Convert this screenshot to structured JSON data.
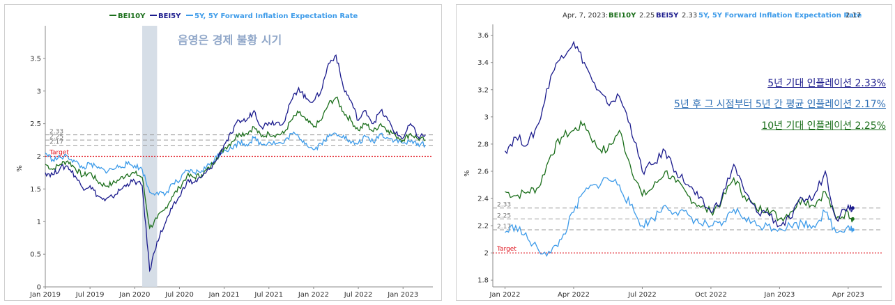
{
  "colors": {
    "bei10y": "#1a6e1a",
    "bei5y": "#1a1a8c",
    "forward": "#3d9be9",
    "target": "#e0141e",
    "ref": "#9a9a9a",
    "shade": "#cfd8e3"
  },
  "chart_data": [
    {
      "type": "line",
      "title": "",
      "legend": {
        "position": "top-center",
        "items": [
          "BEI10Y",
          "BEI5Y",
          "5Y, 5Y Forward Inflation Expectation Rate"
        ]
      },
      "ylabel": "%",
      "xlabel": "",
      "ylim": [
        0,
        4
      ],
      "yticks": [
        "0",
        "0.5",
        "1",
        "1.5",
        "2",
        "2.5",
        "3",
        "3.5"
      ],
      "xticks": [
        "Jan 2019",
        "Jul 2019",
        "Jan 2020",
        "Jul 2020",
        "Jan 2021",
        "Jul 2021",
        "Jan 2022",
        "Jul 2022",
        "Jan 2023"
      ],
      "shaded_period": {
        "start": "2020-02",
        "end": "2020-04",
        "label": "음영은 경제 불황 시기"
      },
      "reference_lines": [
        {
          "value": 2.33,
          "label": "2.33"
        },
        {
          "value": 2.25,
          "label": "2.25"
        },
        {
          "value": 2.17,
          "label": "2.17"
        }
      ],
      "target": {
        "value": 2.0,
        "label": "Target"
      },
      "x": [
        "2019-01",
        "2019-02",
        "2019-03",
        "2019-04",
        "2019-05",
        "2019-06",
        "2019-07",
        "2019-08",
        "2019-09",
        "2019-10",
        "2019-11",
        "2019-12",
        "2020-01",
        "2020-02",
        "2020-03",
        "2020-04",
        "2020-05",
        "2020-06",
        "2020-07",
        "2020-08",
        "2020-09",
        "2020-10",
        "2020-11",
        "2020-12",
        "2021-01",
        "2021-02",
        "2021-03",
        "2021-04",
        "2021-05",
        "2021-06",
        "2021-07",
        "2021-08",
        "2021-09",
        "2021-10",
        "2021-11",
        "2021-12",
        "2022-01",
        "2022-02",
        "2022-03",
        "2022-04",
        "2022-05",
        "2022-06",
        "2022-07",
        "2022-08",
        "2022-09",
        "2022-10",
        "2022-11",
        "2022-12",
        "2023-01",
        "2023-02",
        "2023-03",
        "2023-04"
      ],
      "series": [
        {
          "name": "BEI10Y",
          "values": [
            1.88,
            1.8,
            1.88,
            1.93,
            1.82,
            1.7,
            1.75,
            1.62,
            1.55,
            1.58,
            1.65,
            1.73,
            1.74,
            1.68,
            0.9,
            1.05,
            1.18,
            1.38,
            1.52,
            1.7,
            1.68,
            1.72,
            1.82,
            1.98,
            2.12,
            2.22,
            2.35,
            2.35,
            2.45,
            2.3,
            2.35,
            2.33,
            2.35,
            2.55,
            2.67,
            2.55,
            2.45,
            2.55,
            2.8,
            2.9,
            2.68,
            2.55,
            2.4,
            2.5,
            2.38,
            2.5,
            2.4,
            2.32,
            2.25,
            2.35,
            2.27,
            2.25
          ]
        },
        {
          "name": "BEI5Y",
          "values": [
            1.75,
            1.72,
            1.82,
            1.85,
            1.7,
            1.52,
            1.55,
            1.4,
            1.32,
            1.38,
            1.48,
            1.58,
            1.62,
            1.55,
            0.25,
            0.7,
            0.95,
            1.2,
            1.38,
            1.62,
            1.6,
            1.68,
            1.8,
            1.95,
            2.18,
            2.35,
            2.55,
            2.55,
            2.7,
            2.45,
            2.52,
            2.52,
            2.52,
            2.85,
            3.05,
            2.88,
            2.85,
            3.0,
            3.42,
            3.55,
            3.05,
            2.85,
            2.55,
            2.7,
            2.5,
            2.7,
            2.55,
            2.35,
            2.28,
            2.5,
            2.3,
            2.33
          ]
        },
        {
          "name": "5Y, 5Y Forward Inflation Expectation Rate",
          "values": [
            2.05,
            1.95,
            1.98,
            2.0,
            1.92,
            1.82,
            1.88,
            1.82,
            1.78,
            1.8,
            1.85,
            1.88,
            1.86,
            1.8,
            1.45,
            1.45,
            1.4,
            1.58,
            1.62,
            1.78,
            1.75,
            1.78,
            1.87,
            2.0,
            2.1,
            2.12,
            2.22,
            2.18,
            2.28,
            2.18,
            2.22,
            2.2,
            2.2,
            2.35,
            2.3,
            2.2,
            2.1,
            2.2,
            2.3,
            2.35,
            2.32,
            2.2,
            2.2,
            2.3,
            2.22,
            2.35,
            2.28,
            2.25,
            2.2,
            2.22,
            2.2,
            2.17
          ]
        }
      ]
    },
    {
      "type": "line",
      "title": "",
      "header": {
        "date": "Apr, 7, 2023:",
        "items": [
          {
            "name": "BEI10Y",
            "value": "2.25"
          },
          {
            "name": "BEI5Y",
            "value": "2.33"
          },
          {
            "name": "5Y, 5Y Forward Inflation Expectation Rate",
            "value": "2.17"
          }
        ]
      },
      "ylabel": "%",
      "xlabel": "",
      "ylim": [
        1.75,
        3.68
      ],
      "yticks": [
        "1.8",
        "2",
        "2.2",
        "2.4",
        "2.6",
        "2.8",
        "3",
        "3.2",
        "3.4",
        "3.6"
      ],
      "xticks": [
        "Jan 2022",
        "Apr 2022",
        "Jul 2022",
        "Oct 2022",
        "Jan 2023",
        "Apr 2023"
      ],
      "reference_lines": [
        {
          "value": 2.33,
          "label": "2.33"
        },
        {
          "value": 2.25,
          "label": "2.25"
        },
        {
          "value": 2.17,
          "label": "2.17"
        }
      ],
      "target": {
        "value": 2.0,
        "label": "Target"
      },
      "annotations": [
        "5년 기대 인플레이션 2.33%",
        "5년 후 그 시점부터 5년 간 평균 인플레이션 2.17%",
        "10년 기대 인플레이션 2.25%"
      ],
      "x": [
        "2021-12-31",
        "2022-01-15",
        "2022-02-01",
        "2022-02-15",
        "2022-03-01",
        "2022-03-15",
        "2022-04-01",
        "2022-04-15",
        "2022-05-01",
        "2022-05-15",
        "2022-06-01",
        "2022-06-15",
        "2022-07-01",
        "2022-07-15",
        "2022-08-01",
        "2022-08-15",
        "2022-09-01",
        "2022-09-15",
        "2022-10-01",
        "2022-10-15",
        "2022-11-01",
        "2022-11-15",
        "2022-12-01",
        "2022-12-15",
        "2023-01-01",
        "2023-01-15",
        "2023-02-01",
        "2023-02-15",
        "2023-03-01",
        "2023-03-15",
        "2023-04-01",
        "2023-04-07"
      ],
      "series": [
        {
          "name": "BEI10Y",
          "values": [
            2.45,
            2.42,
            2.45,
            2.48,
            2.72,
            2.85,
            2.9,
            2.95,
            2.78,
            2.75,
            2.9,
            2.65,
            2.42,
            2.48,
            2.6,
            2.52,
            2.42,
            2.35,
            2.3,
            2.38,
            2.55,
            2.42,
            2.32,
            2.33,
            2.25,
            2.3,
            2.4,
            2.35,
            2.45,
            2.25,
            2.3,
            2.25
          ]
        },
        {
          "name": "BEI5Y",
          "values": [
            2.75,
            2.85,
            2.8,
            2.95,
            3.3,
            3.45,
            3.55,
            3.4,
            3.2,
            3.1,
            3.15,
            2.95,
            2.6,
            2.65,
            2.75,
            2.6,
            2.5,
            2.4,
            2.3,
            2.4,
            2.65,
            2.45,
            2.3,
            2.3,
            2.2,
            2.25,
            2.4,
            2.4,
            2.6,
            2.25,
            2.35,
            2.33
          ]
        },
        {
          "name": "5Y, 5Y Forward Inflation Expectation Rate",
          "values": [
            2.15,
            2.2,
            2.1,
            2.02,
            2.0,
            2.1,
            2.3,
            2.45,
            2.5,
            2.55,
            2.5,
            2.35,
            2.2,
            2.25,
            2.35,
            2.3,
            2.28,
            2.22,
            2.2,
            2.2,
            2.32,
            2.26,
            2.2,
            2.2,
            2.18,
            2.2,
            2.22,
            2.2,
            2.3,
            2.15,
            2.2,
            2.17
          ]
        }
      ]
    }
  ]
}
